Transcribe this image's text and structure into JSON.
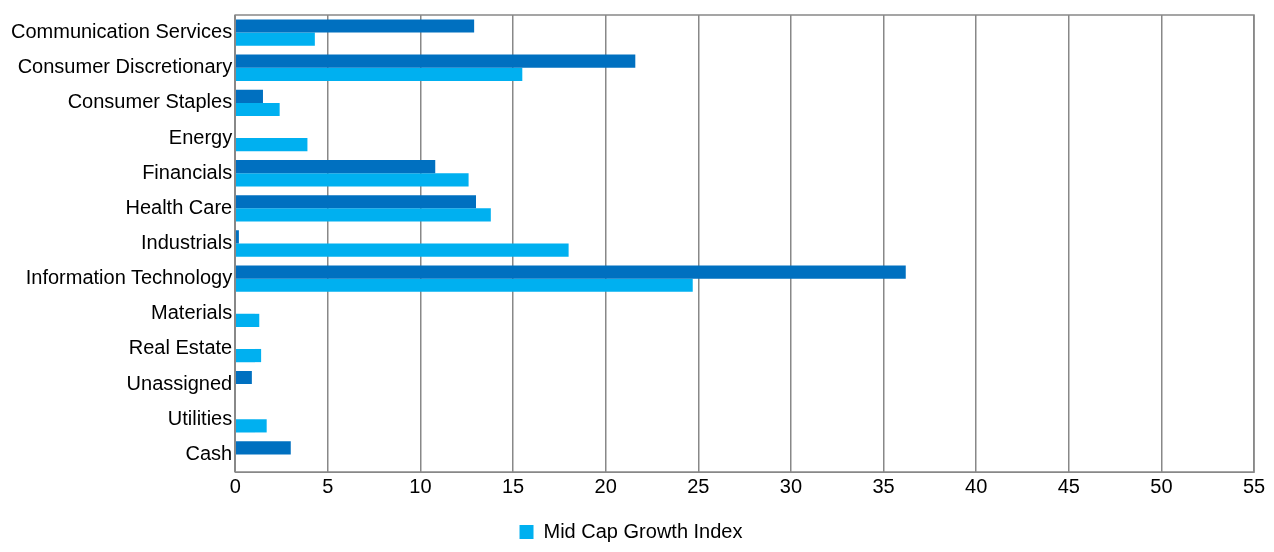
{
  "chart_data": {
    "type": "bar",
    "orientation": "horizontal",
    "categories": [
      "Communication Services",
      "Consumer Discretionary",
      "Consumer Staples",
      "Energy",
      "Financials",
      "Health Care",
      "Industrials",
      "Information Technology",
      "Materials",
      "Real Estate",
      "Unassigned",
      "Utilities",
      "Cash"
    ],
    "series": [
      {
        "color": "#0070c0",
        "values": [
          12.9,
          21.6,
          1.5,
          0,
          10.8,
          13.0,
          0.2,
          36.2,
          0,
          0,
          0.9,
          0,
          3.0
        ]
      },
      {
        "name": "Mid Cap Growth Index",
        "color": "#00b0f0",
        "values": [
          4.3,
          15.5,
          2.4,
          3.9,
          12.6,
          13.8,
          18.0,
          24.7,
          1.3,
          1.4,
          0,
          1.7,
          0
        ]
      }
    ],
    "xlim": [
      0,
      55
    ],
    "xticks": [
      0,
      5,
      10,
      15,
      20,
      25,
      30,
      35,
      40,
      45,
      50,
      55
    ],
    "grid": "x",
    "legend": "bottom"
  }
}
